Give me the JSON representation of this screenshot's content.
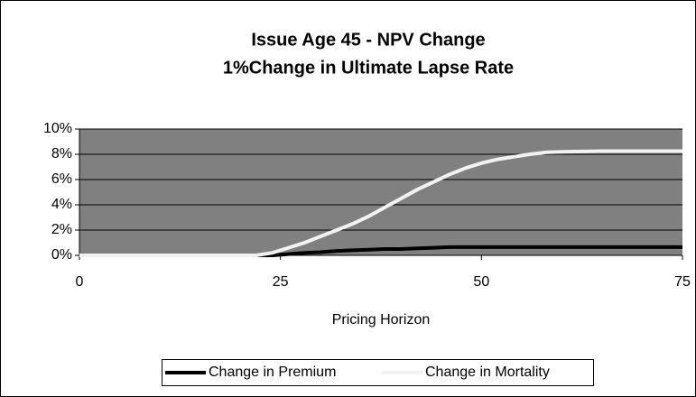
{
  "chart_data": {
    "type": "line",
    "title": "Issue Age 45 - NPV Change",
    "subtitle": "1%Change in Ultimate Lapse Rate",
    "x_label": "Pricing Horizon",
    "x": [
      0,
      5,
      10,
      15,
      20,
      22,
      24,
      26,
      28,
      30,
      32,
      34,
      36,
      38,
      40,
      42,
      44,
      46,
      48,
      50,
      52,
      54,
      56,
      58,
      60,
      65,
      70,
      75
    ],
    "series": [
      {
        "name": "Change in Premium",
        "color": "#000000",
        "values": [
          0,
          0,
          0,
          0,
          0,
          0,
          0,
          0.1,
          0.2,
          0.25,
          0.35,
          0.4,
          0.45,
          0.5,
          0.5,
          0.55,
          0.6,
          0.65,
          0.65,
          0.65,
          0.65,
          0.65,
          0.65,
          0.65,
          0.65,
          0.65,
          0.65,
          0.65
        ]
      },
      {
        "name": "Change in Mortality",
        "color": "#f2f2f2",
        "values": [
          0,
          0,
          0,
          0,
          0,
          0,
          0.2,
          0.6,
          1.0,
          1.5,
          2.0,
          2.5,
          3.1,
          3.8,
          4.5,
          5.2,
          5.8,
          6.4,
          6.9,
          7.3,
          7.6,
          7.8,
          8.0,
          8.15,
          8.2,
          8.25,
          8.25,
          8.25
        ]
      }
    ],
    "xlim": [
      0,
      75
    ],
    "xticks": [
      0,
      25,
      50,
      75
    ],
    "ylim": [
      0,
      10
    ],
    "yticks": [
      {
        "value": 0,
        "label": "0%"
      },
      {
        "value": 2,
        "label": "2%"
      },
      {
        "value": 4,
        "label": "4%"
      },
      {
        "value": 6,
        "label": "6%"
      },
      {
        "value": 8,
        "label": "8%"
      },
      {
        "value": 10,
        "label": "10%"
      }
    ],
    "grid": true,
    "plot_background": "#808080",
    "legend": "bottom"
  }
}
